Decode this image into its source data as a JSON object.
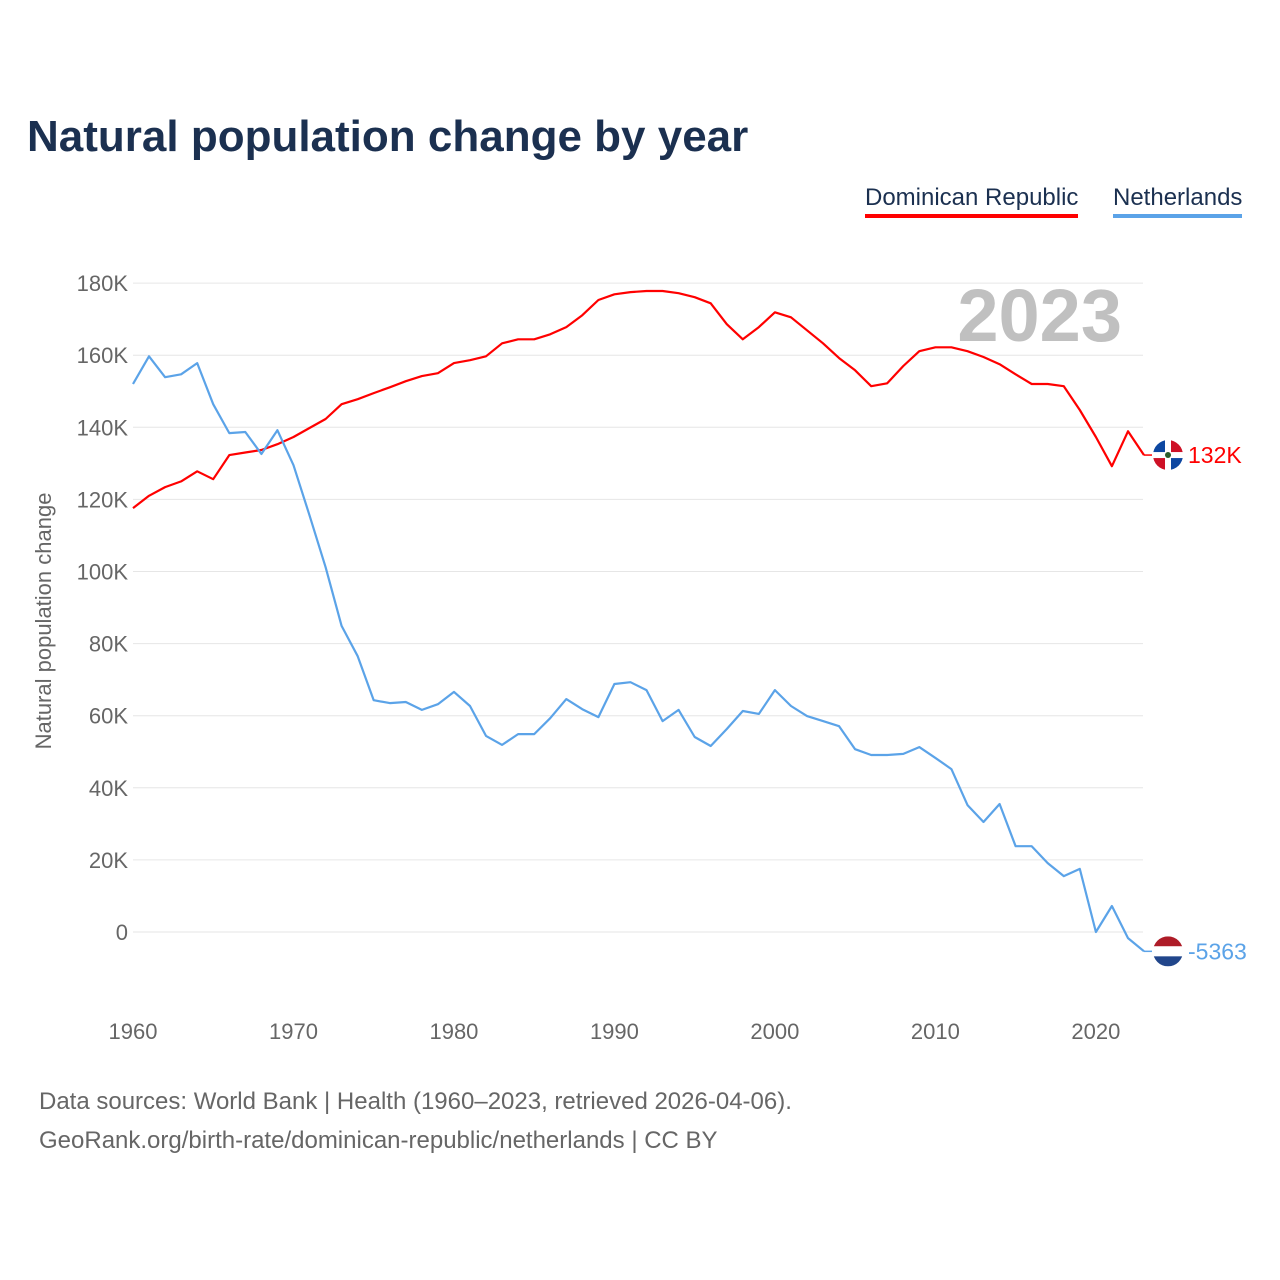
{
  "chart_data": {
    "type": "line",
    "title": "Natural population change by year",
    "xlabel": "",
    "ylabel": "Natural population change",
    "ylim": [
      -20000,
      180000
    ],
    "xlim": [
      1960,
      2023
    ],
    "grid": true,
    "legend_position": "top-right",
    "year_watermark": "2023",
    "y_ticks": [
      {
        "v": 0,
        "label": "0"
      },
      {
        "v": 20000,
        "label": "20K"
      },
      {
        "v": 40000,
        "label": "40K"
      },
      {
        "v": 60000,
        "label": "60K"
      },
      {
        "v": 80000,
        "label": "80K"
      },
      {
        "v": 100000,
        "label": "100K"
      },
      {
        "v": 120000,
        "label": "120K"
      },
      {
        "v": 140000,
        "label": "140K"
      },
      {
        "v": 160000,
        "label": "160K"
      },
      {
        "v": 180000,
        "label": "180K"
      }
    ],
    "x_ticks": [
      {
        "v": 1960,
        "label": "1960"
      },
      {
        "v": 1970,
        "label": "1970"
      },
      {
        "v": 1980,
        "label": "1980"
      },
      {
        "v": 1990,
        "label": "1990"
      },
      {
        "v": 2000,
        "label": "2000"
      },
      {
        "v": 2010,
        "label": "2010"
      },
      {
        "v": 2020,
        "label": "2020"
      }
    ],
    "x": [
      1960,
      1961,
      1962,
      1963,
      1964,
      1965,
      1966,
      1967,
      1968,
      1969,
      1970,
      1971,
      1972,
      1973,
      1974,
      1975,
      1976,
      1977,
      1978,
      1979,
      1980,
      1981,
      1982,
      1983,
      1984,
      1985,
      1986,
      1987,
      1988,
      1989,
      1990,
      1991,
      1992,
      1993,
      1994,
      1995,
      1996,
      1997,
      1998,
      1999,
      2000,
      2001,
      2002,
      2003,
      2004,
      2005,
      2006,
      2007,
      2008,
      2009,
      2010,
      2011,
      2012,
      2013,
      2014,
      2015,
      2016,
      2017,
      2018,
      2019,
      2020,
      2021,
      2022,
      2023
    ],
    "series": [
      {
        "name": "Dominican Republic",
        "color": "#ff0000",
        "end_label": "132K",
        "flag": "dominican-republic",
        "values": [
          117600,
          121000,
          123400,
          125000,
          127800,
          125600,
          132300,
          133000,
          133700,
          135300,
          137300,
          139800,
          142300,
          146400,
          147800,
          149500,
          151100,
          152800,
          154200,
          155000,
          157800,
          158600,
          159700,
          163300,
          164400,
          164400,
          165800,
          167800,
          171100,
          175300,
          176900,
          177500,
          177800,
          177800,
          177200,
          176100,
          174400,
          168600,
          164400,
          167800,
          171900,
          170500,
          166900,
          163300,
          159200,
          155800,
          151400,
          152200,
          157000,
          161100,
          162200,
          162200,
          161100,
          159500,
          157500,
          154700,
          152000,
          152000,
          151400,
          144800,
          137300,
          129200,
          138900,
          132300
        ]
      },
      {
        "name": "Netherlands",
        "color": "#5ba3e8",
        "end_label": "-5363",
        "flag": "netherlands",
        "values": [
          152000,
          159700,
          153900,
          154700,
          157800,
          146400,
          138400,
          138700,
          132600,
          139200,
          129500,
          115600,
          101200,
          84900,
          76500,
          64300,
          63500,
          63800,
          61600,
          63200,
          66600,
          62700,
          54400,
          51900,
          54900,
          54900,
          59300,
          64600,
          61800,
          59600,
          68800,
          69300,
          67100,
          58500,
          61600,
          54100,
          51600,
          56300,
          61300,
          60500,
          67100,
          62700,
          59900,
          58500,
          57100,
          50700,
          49100,
          49100,
          49400,
          51300,
          48300,
          45200,
          35200,
          30500,
          35500,
          23800,
          23800,
          19100,
          15500,
          17500,
          0,
          7200,
          -1700,
          -5363
        ]
      }
    ]
  },
  "footer": {
    "sources": "Data sources: World Bank | Health (1960–2023, retrieved 2026-04-06).",
    "attribution": "GeoRank.org/birth-rate/dominican-republic/netherlands | CC BY"
  }
}
